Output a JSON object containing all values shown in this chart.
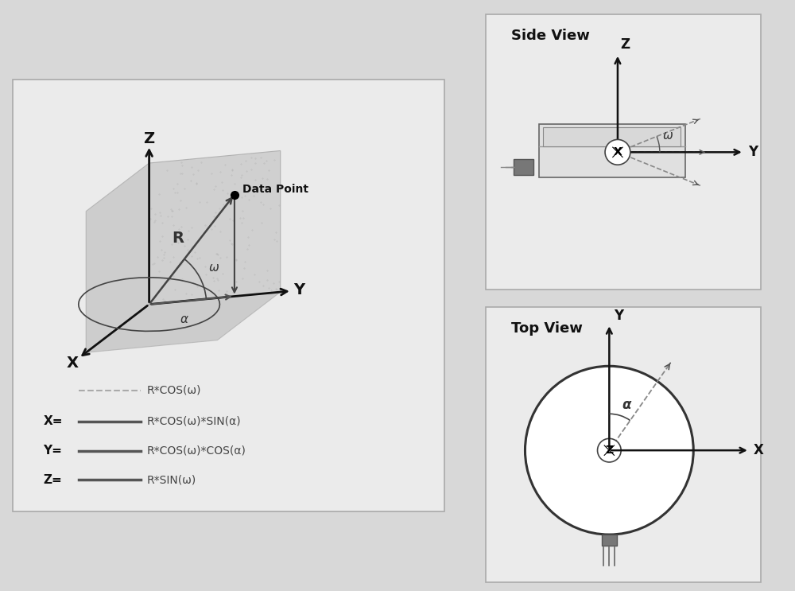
{
  "bg_color": "#d8d8d8",
  "panel_bg": "#ebebeb",
  "panel_edge": "#aaaaaa",
  "cube_face_zy": "#d0d0d0",
  "cube_face_zx": "#c8c8c8",
  "cube_face_xy": "#c0c0c0",
  "axis_color": "#111111",
  "arrow_color": "#333333",
  "dashed_color": "#999999",
  "legend_line_color": "#888888",
  "legend_solid_color": "#666666",
  "text_color": "#111111",
  "white": "#ffffff",
  "dark_gray": "#555555",
  "title_side": "Side View",
  "title_top": "Top View",
  "label_Z": "Z",
  "label_Y": "Y",
  "label_X": "X",
  "label_R": "R",
  "label_omega": "ω",
  "label_alpha": "α",
  "label_data_point": "Data Point",
  "legend_r_cos": "R*COS(ω)",
  "legend_x_eq": "X=",
  "legend_x_val": "R*COS(ω)*SIN(α)",
  "legend_y_eq": "Y=",
  "legend_y_val": "R*COS(ω)*COS(α)",
  "legend_z_eq": "Z=",
  "legend_z_val": "R*SIN(ω)"
}
